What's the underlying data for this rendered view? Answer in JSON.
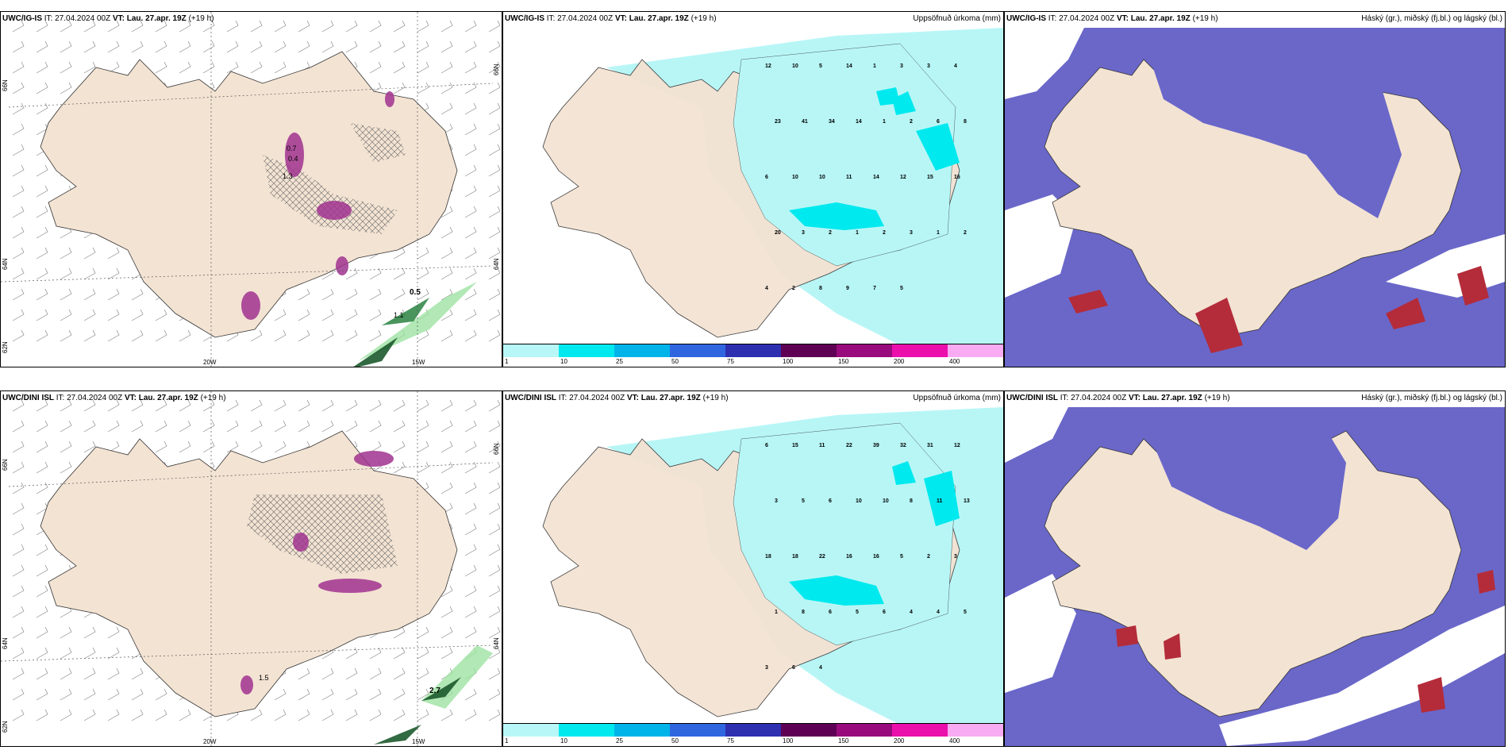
{
  "rows": [
    {
      "model_label": "UWC/IG-IS",
      "issue_time_label": "IT:",
      "issue_time": "27.04.2024 00Z",
      "valid_label": "VT:",
      "valid_time": "Lau. 27.apr. 19Z",
      "lead_time": "(+19 h)",
      "precip_numbers": [
        "12",
        "10",
        "5",
        "14",
        "1",
        "3",
        "3",
        "4",
        "23",
        "41",
        "34",
        "14",
        "1",
        "2",
        "6",
        "8",
        "6",
        "10",
        "10",
        "11",
        "14",
        "12",
        "15",
        "16",
        "20",
        "3",
        "2",
        "1",
        "2",
        "3",
        "1",
        "2",
        "4",
        "2",
        "8",
        "9",
        "7",
        "5"
      ],
      "panel1_contours": [
        "0.5",
        "1.1",
        "1.3",
        "0.7",
        "0.4"
      ],
      "panel1_axis": {
        "x_left": "20W",
        "x_right": "15W",
        "y_left_top": "66N",
        "y_left_mid": "64N",
        "y_left_bottom": "62N",
        "y_right_top": "66N",
        "y_right_mid": "64N"
      }
    },
    {
      "model_label": "UWC/DINI ISL",
      "issue_time_label": "IT:",
      "issue_time": "27.04.2024 00Z",
      "valid_label": "VT:",
      "valid_time": "Lau. 27.apr. 19Z",
      "lead_time": "(+19 h)",
      "precip_numbers": [
        "6",
        "15",
        "11",
        "22",
        "39",
        "32",
        "31",
        "12",
        "3",
        "5",
        "6",
        "10",
        "10",
        "8",
        "11",
        "13",
        "18",
        "18",
        "22",
        "16",
        "16",
        "5",
        "2",
        "3",
        "1",
        "8",
        "6",
        "5",
        "6",
        "4",
        "4",
        "5",
        "3",
        "6",
        "4"
      ],
      "panel1_contours": [
        "1.5",
        "2.7"
      ],
      "panel1_axis": {
        "x_left": "20W",
        "x_right": "15W",
        "y_left_top": "66N",
        "y_left_mid": "64N",
        "y_left_bottom": "62N",
        "y_right_top": "66N",
        "y_right_mid": "64N"
      }
    }
  ],
  "precip_title": "Uppsöfnuð úrkoma (mm)",
  "cloud_title": "Háský (gr.), miðský (fj.bl.) og lágský (bl.)",
  "colorbar": {
    "ticks": [
      "1",
      "10",
      "25",
      "50",
      "75",
      "100",
      "150",
      "200",
      "400"
    ],
    "colors": [
      "#b7f7f7",
      "#00e9ee",
      "#00b4ea",
      "#2f66e0",
      "#2d2fb0",
      "#5e0054",
      "#990a7d",
      "#eb0fac",
      "#f8aaf2"
    ]
  },
  "colors": {
    "land": "#f3e3d3",
    "wind_green": "#9de2a2",
    "purple": "#a0328f",
    "precip_light": "#b8f6f6",
    "precip_mid": "#00e9ee",
    "cloud_high": "#6a67c9",
    "cloud_low": "#b42c3a"
  }
}
